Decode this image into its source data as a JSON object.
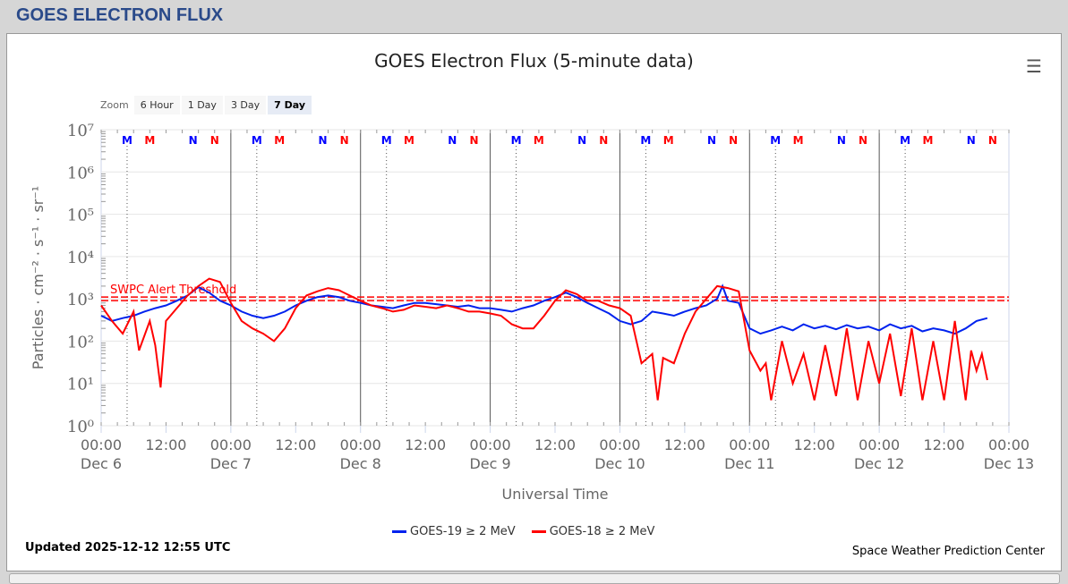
{
  "header": {
    "title": "GOES ELECTRON FLUX"
  },
  "zoom": {
    "label": "Zoom",
    "buttons": [
      "6 Hour",
      "1 Day",
      "3 Day",
      "7 Day"
    ],
    "active": "7 Day"
  },
  "footer": {
    "updated": "Updated 2025-12-12 12:55 UTC",
    "credit": "Space Weather Prediction Center"
  },
  "chart_data": {
    "type": "line",
    "title": "GOES Electron Flux (5-minute data)",
    "xlabel": "Universal Time",
    "ylabel": "Particles · cm⁻² · s⁻¹ · sr⁻¹",
    "yscale": "log",
    "ylim": [
      1,
      10000000
    ],
    "y_ticks": [
      "10⁰",
      "10¹",
      "10²",
      "10³",
      "10⁴",
      "10⁵",
      "10⁶",
      "10⁷"
    ],
    "x_unit": "hours since Dec 6 00:00 UTC",
    "xlim": [
      0,
      168
    ],
    "x_ticks": [
      {
        "t": "00:00",
        "d": "Dec 6"
      },
      {
        "t": "12:00",
        "d": ""
      },
      {
        "t": "00:00",
        "d": "Dec 7"
      },
      {
        "t": "12:00",
        "d": ""
      },
      {
        "t": "00:00",
        "d": "Dec 8"
      },
      {
        "t": "12:00",
        "d": ""
      },
      {
        "t": "00:00",
        "d": "Dec 9"
      },
      {
        "t": "12:00",
        "d": ""
      },
      {
        "t": "00:00",
        "d": "Dec 10"
      },
      {
        "t": "12:00",
        "d": ""
      },
      {
        "t": "00:00",
        "d": "Dec 11"
      },
      {
        "t": "12:00",
        "d": ""
      },
      {
        "t": "00:00",
        "d": "Dec 12"
      },
      {
        "t": "12:00",
        "d": ""
      },
      {
        "t": "00:00",
        "d": "Dec 13"
      }
    ],
    "threshold": {
      "label": "SWPC Alert Threshold",
      "value": 1000,
      "color": "#ff0000"
    },
    "markers": [
      {
        "label": "M",
        "hour": 4.8,
        "color": "#0000ff"
      },
      {
        "label": "M",
        "hour": 9,
        "color": "#ff0000"
      },
      {
        "label": "N",
        "hour": 17,
        "color": "#0000ff"
      },
      {
        "label": "N",
        "hour": 21,
        "color": "#ff0000"
      }
    ],
    "legend_position": "bottom-center",
    "series": [
      {
        "name": "GOES-19 ≥ 2 MeV",
        "color": "#0022ee",
        "points": [
          [
            0,
            400
          ],
          [
            2,
            300
          ],
          [
            4,
            350
          ],
          [
            6,
            400
          ],
          [
            8,
            500
          ],
          [
            10,
            600
          ],
          [
            12,
            700
          ],
          [
            14,
            900
          ],
          [
            16,
            1200
          ],
          [
            18,
            1900
          ],
          [
            20,
            1400
          ],
          [
            22,
            900
          ],
          [
            24,
            700
          ],
          [
            26,
            500
          ],
          [
            28,
            400
          ],
          [
            30,
            350
          ],
          [
            32,
            400
          ],
          [
            34,
            500
          ],
          [
            36,
            700
          ],
          [
            38,
            900
          ],
          [
            40,
            1100
          ],
          [
            42,
            1200
          ],
          [
            44,
            1100
          ],
          [
            46,
            900
          ],
          [
            48,
            800
          ],
          [
            50,
            700
          ],
          [
            52,
            650
          ],
          [
            54,
            600
          ],
          [
            56,
            700
          ],
          [
            58,
            800
          ],
          [
            60,
            800
          ],
          [
            62,
            750
          ],
          [
            64,
            700
          ],
          [
            66,
            650
          ],
          [
            68,
            700
          ],
          [
            70,
            600
          ],
          [
            72,
            600
          ],
          [
            74,
            550
          ],
          [
            76,
            500
          ],
          [
            78,
            600
          ],
          [
            80,
            700
          ],
          [
            82,
            900
          ],
          [
            84,
            1100
          ],
          [
            86,
            1400
          ],
          [
            88,
            1100
          ],
          [
            90,
            800
          ],
          [
            92,
            600
          ],
          [
            94,
            450
          ],
          [
            96,
            300
          ],
          [
            98,
            250
          ],
          [
            100,
            300
          ],
          [
            102,
            500
          ],
          [
            104,
            450
          ],
          [
            106,
            400
          ],
          [
            108,
            500
          ],
          [
            110,
            600
          ],
          [
            112,
            700
          ],
          [
            114,
            1000
          ],
          [
            115,
            2000
          ],
          [
            116,
            900
          ],
          [
            118,
            800
          ],
          [
            120,
            200
          ],
          [
            122,
            150
          ],
          [
            124,
            180
          ],
          [
            126,
            220
          ],
          [
            128,
            180
          ],
          [
            130,
            250
          ],
          [
            132,
            200
          ],
          [
            134,
            230
          ],
          [
            136,
            190
          ],
          [
            138,
            240
          ],
          [
            140,
            200
          ],
          [
            142,
            220
          ],
          [
            144,
            180
          ],
          [
            146,
            250
          ],
          [
            148,
            200
          ],
          [
            150,
            230
          ],
          [
            152,
            170
          ],
          [
            154,
            200
          ],
          [
            156,
            180
          ],
          [
            158,
            150
          ],
          [
            160,
            200
          ],
          [
            162,
            300
          ],
          [
            164,
            350
          ]
        ]
      },
      {
        "name": "GOES-18 ≥ 2 MeV",
        "color": "#ff0000",
        "points": [
          [
            0,
            700
          ],
          [
            2,
            300
          ],
          [
            4,
            150
          ],
          [
            6,
            500
          ],
          [
            7,
            60
          ],
          [
            9,
            300
          ],
          [
            10,
            80
          ],
          [
            11,
            8
          ],
          [
            12,
            300
          ],
          [
            14,
            600
          ],
          [
            16,
            1200
          ],
          [
            18,
            2000
          ],
          [
            20,
            3000
          ],
          [
            22,
            2500
          ],
          [
            24,
            800
          ],
          [
            26,
            300
          ],
          [
            28,
            200
          ],
          [
            30,
            150
          ],
          [
            32,
            100
          ],
          [
            34,
            200
          ],
          [
            36,
            600
          ],
          [
            38,
            1200
          ],
          [
            40,
            1500
          ],
          [
            42,
            1800
          ],
          [
            44,
            1600
          ],
          [
            46,
            1200
          ],
          [
            48,
            900
          ],
          [
            50,
            700
          ],
          [
            52,
            600
          ],
          [
            54,
            500
          ],
          [
            56,
            550
          ],
          [
            58,
            700
          ],
          [
            60,
            650
          ],
          [
            62,
            600
          ],
          [
            64,
            700
          ],
          [
            66,
            600
          ],
          [
            68,
            500
          ],
          [
            70,
            500
          ],
          [
            72,
            450
          ],
          [
            74,
            400
          ],
          [
            76,
            250
          ],
          [
            78,
            200
          ],
          [
            80,
            200
          ],
          [
            82,
            400
          ],
          [
            84,
            900
          ],
          [
            86,
            1600
          ],
          [
            88,
            1300
          ],
          [
            90,
            900
          ],
          [
            92,
            900
          ],
          [
            94,
            700
          ],
          [
            96,
            600
          ],
          [
            98,
            400
          ],
          [
            100,
            30
          ],
          [
            102,
            50
          ],
          [
            103,
            4
          ],
          [
            104,
            40
          ],
          [
            106,
            30
          ],
          [
            108,
            150
          ],
          [
            110,
            500
          ],
          [
            112,
            1000
          ],
          [
            114,
            2000
          ],
          [
            116,
            1800
          ],
          [
            118,
            1500
          ],
          [
            120,
            60
          ],
          [
            122,
            20
          ],
          [
            123,
            30
          ],
          [
            124,
            4
          ],
          [
            126,
            100
          ],
          [
            128,
            10
          ],
          [
            130,
            50
          ],
          [
            132,
            4
          ],
          [
            134,
            80
          ],
          [
            136,
            5
          ],
          [
            138,
            200
          ],
          [
            140,
            4
          ],
          [
            142,
            100
          ],
          [
            144,
            10
          ],
          [
            146,
            150
          ],
          [
            148,
            5
          ],
          [
            150,
            200
          ],
          [
            152,
            4
          ],
          [
            154,
            100
          ],
          [
            156,
            4
          ],
          [
            158,
            300
          ],
          [
            160,
            4
          ],
          [
            161,
            60
          ],
          [
            162,
            20
          ],
          [
            163,
            50
          ],
          [
            164,
            12
          ]
        ]
      }
    ]
  }
}
